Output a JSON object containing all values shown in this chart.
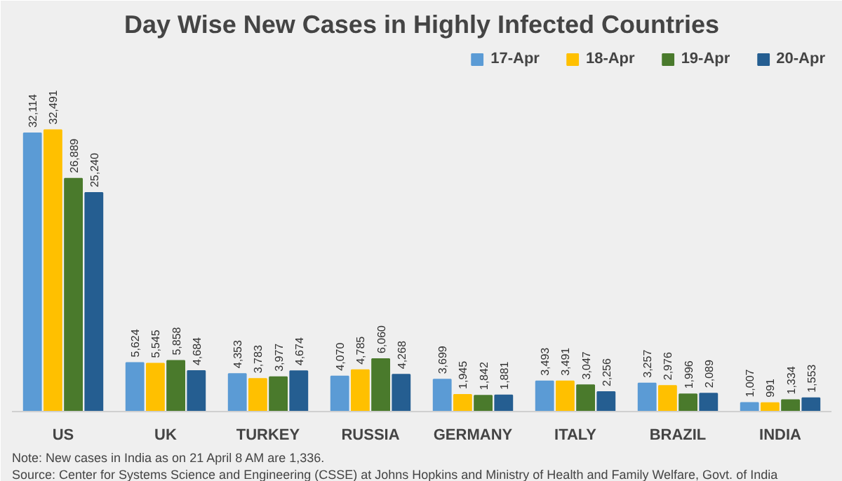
{
  "chart_data": {
    "type": "bar",
    "title": "Day Wise New Cases in Highly Infected Countries",
    "categories": [
      "US",
      "UK",
      "TURKEY",
      "RUSSIA",
      "GERMANY",
      "ITALY",
      "BRAZIL",
      "INDIA"
    ],
    "tick_labels": "x",
    "series": [
      {
        "name": "17-Apr",
        "color": "#5b9bd5",
        "values": [
          32114,
          5624,
          4353,
          4070,
          3699,
          3493,
          3257,
          1007
        ],
        "value_labels": [
          "32,114",
          "5,624",
          "4,353",
          "4,070",
          "3,699",
          "3,493",
          "3,257",
          "1,007"
        ]
      },
      {
        "name": "18-Apr",
        "color": "#ffc000",
        "values": [
          32491,
          5545,
          3783,
          4785,
          1945,
          3491,
          2976,
          991
        ],
        "value_labels": [
          "32,491",
          "5,545",
          "3,783",
          "4,785",
          "1,945",
          "3,491",
          "2,976",
          "991"
        ]
      },
      {
        "name": "19-Apr",
        "color": "#4a7a2c",
        "values": [
          26889,
          5858,
          3977,
          6060,
          1842,
          3047,
          1996,
          1334
        ],
        "value_labels": [
          "26,889",
          "5,858",
          "3,977",
          "6,060",
          "1,842",
          "3,047",
          "1,996",
          "1,334"
        ]
      },
      {
        "name": "20-Apr",
        "color": "#255e91",
        "values": [
          25240,
          4684,
          4674,
          4268,
          1881,
          2256,
          2089,
          1553
        ],
        "value_labels": [
          "25,240",
          "4,684",
          "4,674",
          "4,268",
          "1,881",
          "2,256",
          "2,089",
          "1,553"
        ]
      }
    ],
    "legend": "top right",
    "grid": false,
    "annotations": [
      "Note: New cases in India as on 21 April 8 AM are 1,336.",
      "Source: Center for Systems Science and Engineering (CSSE) at Johns Hopkins and Ministry of Health and Family Welfare, Govt. of India"
    ]
  }
}
